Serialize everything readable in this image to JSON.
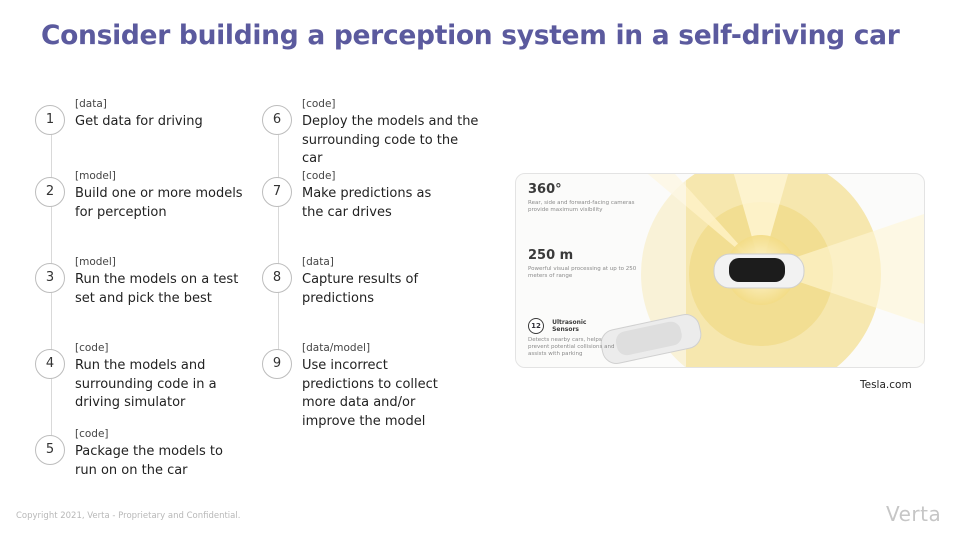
{
  "slide": {
    "title": "Consider building a perception system in a self-driving car",
    "steps_left": [
      {
        "num": "1",
        "tag": "[data]",
        "text": "Get data for driving"
      },
      {
        "num": "2",
        "tag": "[model]",
        "text": "Build one or more models for perception"
      },
      {
        "num": "3",
        "tag": "[model]",
        "text": "Run the models on a test set and pick the best"
      },
      {
        "num": "4",
        "tag": "[code]",
        "text": "Run the models and surrounding code in a driving simulator"
      },
      {
        "num": "5",
        "tag": "[code]",
        "text": "Package the models to run on on the car"
      }
    ],
    "steps_right": [
      {
        "num": "6",
        "tag": "[code]",
        "text": "Deploy the models and the surrounding code to the car"
      },
      {
        "num": "7",
        "tag": "[code]",
        "text": "Make predictions as the car drives"
      },
      {
        "num": "8",
        "tag": "[data]",
        "text": "Capture results of predictions"
      },
      {
        "num": "9",
        "tag": "[data/model]",
        "text": "Use incorrect predictions to collect more data and/or improve the model"
      }
    ],
    "infographic": {
      "stat1_value": "360°",
      "stat1_desc": "Rear, side and forward-facing cameras provide maximum visibility",
      "stat2_value": "250 m",
      "stat2_desc": "Powerful visual processing at up to 250 meters of range",
      "stat3_badge": "12",
      "stat3_label_line1": "Ultrasonic",
      "stat3_label_line2": "Sensors",
      "stat3_desc": "Detects nearby cars, helps prevent potential collisions and assists with parking"
    },
    "image_caption": "Tesla.com",
    "footer": "Copyright 2021, Verta  -  Proprietary and Confidential.",
    "logo_text": "Verta",
    "colors": {
      "title": "#5b5a9e",
      "sensor": "#f3dc86",
      "line": "#d9d9d9"
    }
  }
}
